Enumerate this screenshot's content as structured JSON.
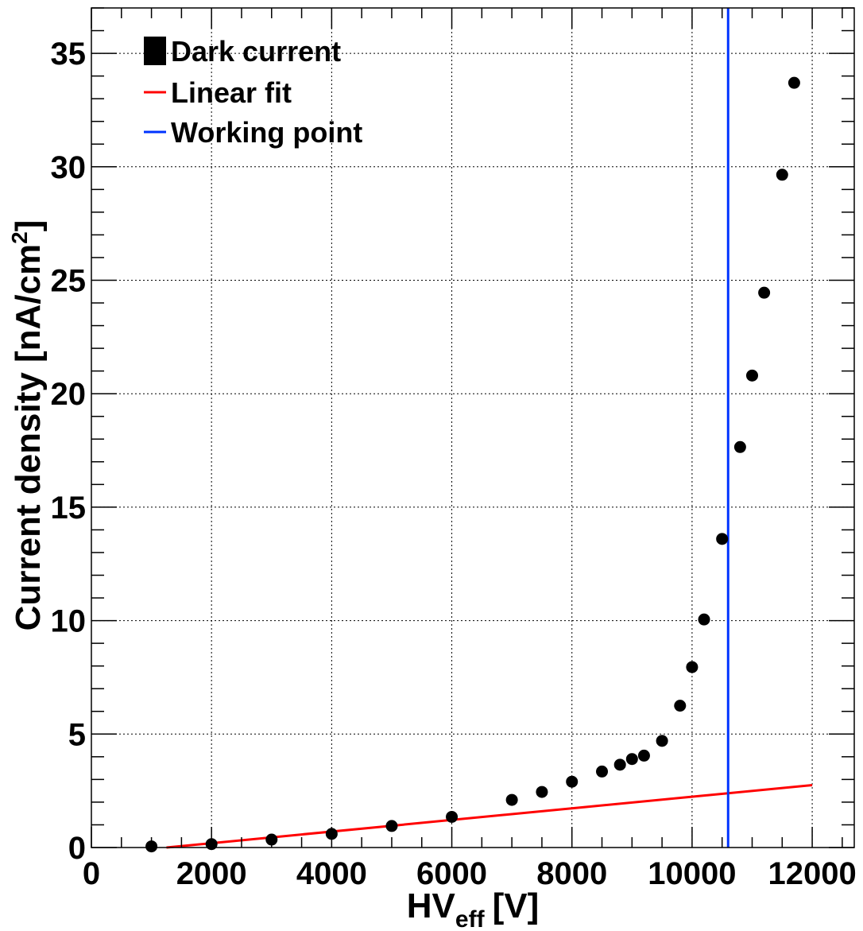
{
  "chart_data": {
    "type": "scatter",
    "xlabel_main": "HV",
    "xlabel_sub": "eff",
    "xlabel_unit": "[V]",
    "ylabel_main": "Current density [nA/cm",
    "ylabel_sup": "2",
    "ylabel_end": "]",
    "xlim": [
      0,
      12700
    ],
    "ylim": [
      0,
      37
    ],
    "x_ticks": [
      0,
      2000,
      4000,
      6000,
      8000,
      10000,
      12000
    ],
    "x_tick_labels": [
      "0",
      "2000",
      "4000",
      "6000",
      "8000",
      "10000",
      "12000"
    ],
    "y_ticks": [
      0,
      5,
      10,
      15,
      20,
      25,
      30,
      35
    ],
    "y_tick_labels": [
      "0",
      "5",
      "10",
      "15",
      "20",
      "25",
      "30",
      "35"
    ],
    "grid": true,
    "legend_position": "top-left",
    "legend": [
      {
        "label": "Dark current",
        "kind": "marker",
        "color": "#000000"
      },
      {
        "label": "Linear fit",
        "kind": "line",
        "color": "#ff0000"
      },
      {
        "label": "Working point",
        "kind": "line",
        "color": "#0033ff"
      }
    ],
    "series": [
      {
        "name": "Dark current",
        "color": "#000000",
        "points": [
          {
            "x": 1000,
            "y": 0.05
          },
          {
            "x": 2000,
            "y": 0.15
          },
          {
            "x": 3000,
            "y": 0.35
          },
          {
            "x": 4000,
            "y": 0.6
          },
          {
            "x": 5000,
            "y": 0.95
          },
          {
            "x": 6000,
            "y": 1.35
          },
          {
            "x": 7000,
            "y": 2.1
          },
          {
            "x": 7500,
            "y": 2.45
          },
          {
            "x": 8000,
            "y": 2.9
          },
          {
            "x": 8500,
            "y": 3.35
          },
          {
            "x": 8800,
            "y": 3.65
          },
          {
            "x": 9000,
            "y": 3.9
          },
          {
            "x": 9200,
            "y": 4.05
          },
          {
            "x": 9500,
            "y": 4.7
          },
          {
            "x": 9800,
            "y": 6.25
          },
          {
            "x": 10000,
            "y": 7.95
          },
          {
            "x": 10200,
            "y": 10.05
          },
          {
            "x": 10500,
            "y": 13.6
          },
          {
            "x": 10800,
            "y": 17.65
          },
          {
            "x": 11000,
            "y": 20.8
          },
          {
            "x": 11200,
            "y": 24.45
          },
          {
            "x": 11500,
            "y": 29.65
          },
          {
            "x": 11700,
            "y": 33.7
          }
        ]
      }
    ],
    "linear_fit": {
      "name": "Linear fit",
      "color": "#ff0000",
      "x_start": 1250,
      "y_start": 0.0,
      "x_end": 12000,
      "y_end": 2.75
    },
    "working_point": {
      "name": "Working point",
      "color": "#0033ff",
      "x": 10600
    }
  }
}
